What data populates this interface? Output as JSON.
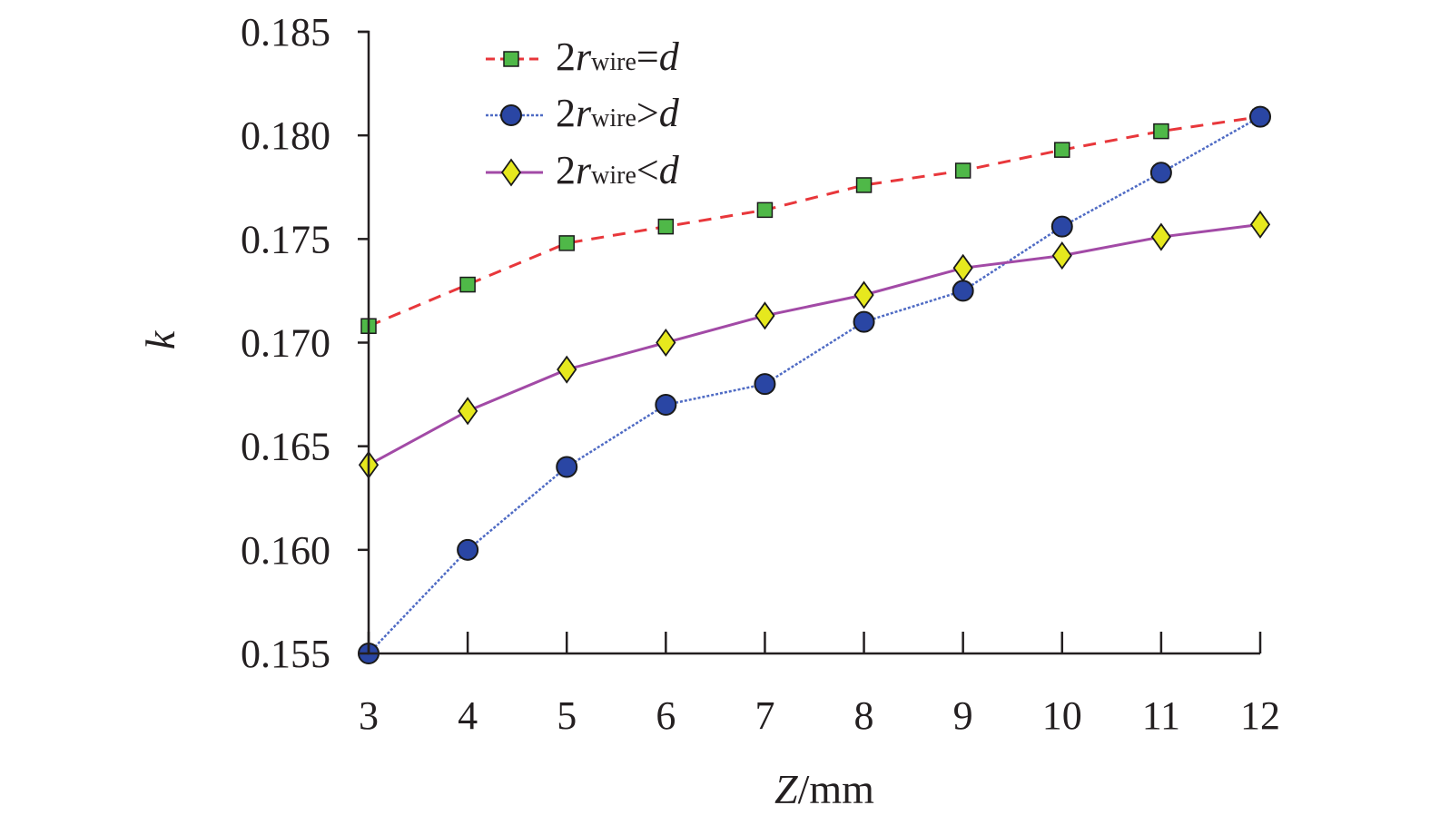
{
  "chart_data": {
    "type": "line",
    "x": [
      3,
      4,
      5,
      6,
      7,
      8,
      9,
      10,
      11,
      12
    ],
    "xlim": [
      3,
      12
    ],
    "ylim": [
      0.155,
      0.185
    ],
    "xticks": [
      "3",
      "4",
      "5",
      "6",
      "7",
      "8",
      "9",
      "10",
      "11",
      "12"
    ],
    "yticks": [
      "0.155",
      "0.160",
      "0.165",
      "0.170",
      "0.175",
      "0.180",
      "0.185"
    ],
    "ytick_values": [
      0.155,
      0.16,
      0.165,
      0.17,
      0.175,
      0.18,
      0.185
    ],
    "xlabel": {
      "var": "Z",
      "unit": "/mm"
    },
    "ylabel": "k",
    "grid": false,
    "legend_position": "top-center",
    "series": [
      {
        "name": {
          "prefix": "2",
          "var": "r",
          "sub": "wire",
          "op": "=",
          "rhs": "d"
        },
        "values": [
          0.1708,
          0.1728,
          0.1748,
          0.1756,
          0.1764,
          0.1776,
          0.1783,
          0.1793,
          0.1802,
          0.1809
        ],
        "line_color": "#e8373b",
        "marker": "square",
        "marker_fill": "#4fb848",
        "dash": "14 10"
      },
      {
        "name": {
          "prefix": "2",
          "var": "r",
          "sub": "wire",
          "op": ">",
          "rhs": "d"
        },
        "values": [
          0.155,
          0.16,
          0.164,
          0.167,
          0.168,
          0.171,
          0.1725,
          0.1756,
          0.1782,
          0.1809
        ],
        "line_color": "#4f6bc4",
        "marker": "circle",
        "marker_fill": "#2a46a4",
        "dash": "3 2"
      },
      {
        "name": {
          "prefix": "2",
          "var": "r",
          "sub": "wire",
          "op": "<",
          "rhs": "d"
        },
        "values": [
          0.1641,
          0.1667,
          0.1687,
          0.17,
          0.1713,
          0.1723,
          0.1736,
          0.1742,
          0.1751,
          0.1757
        ],
        "line_color": "#a24aa6",
        "marker": "diamond",
        "marker_fill": "#e6e81e",
        "dash": ""
      }
    ]
  }
}
